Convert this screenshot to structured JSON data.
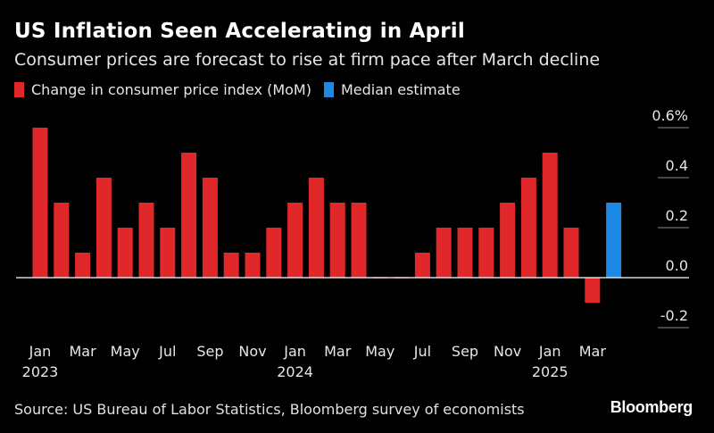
{
  "title": "US Inflation Seen Accelerating in April",
  "subtitle": "Consumer prices are forecast to rise at firm pace after March decline",
  "legend": [
    {
      "label": "Change in consumer price index (MoM)",
      "color": "#e0282b"
    },
    {
      "label": "Median estimate",
      "color": "#1e88e5"
    }
  ],
  "source": "Source: US Bureau of Labor Statistics, Bloomberg survey of economists",
  "brand": "Bloomberg",
  "chart_data": {
    "type": "bar",
    "categories": [
      "Jan 2023",
      "Feb 2023",
      "Mar 2023",
      "Apr 2023",
      "May 2023",
      "Jun 2023",
      "Jul 2023",
      "Aug 2023",
      "Sep 2023",
      "Oct 2023",
      "Nov 2023",
      "Dec 2023",
      "Jan 2024",
      "Feb 2024",
      "Mar 2024",
      "Apr 2024",
      "May 2024",
      "Jun 2024",
      "Jul 2024",
      "Aug 2024",
      "Sep 2024",
      "Oct 2024",
      "Nov 2024",
      "Dec 2024",
      "Jan 2025",
      "Feb 2025",
      "Mar 2025",
      "Apr 2025"
    ],
    "series": [
      {
        "name": "Change in consumer price index (MoM)",
        "color": "#e0282b",
        "values": [
          0.6,
          0.3,
          0.1,
          0.4,
          0.2,
          0.3,
          0.2,
          0.5,
          0.4,
          0.1,
          0.1,
          0.2,
          0.3,
          0.4,
          0.3,
          0.3,
          0.0,
          0.0,
          0.1,
          0.2,
          0.2,
          0.2,
          0.3,
          0.4,
          0.5,
          0.2,
          -0.1,
          null
        ]
      },
      {
        "name": "Median estimate",
        "color": "#1e88e5",
        "values": [
          null,
          null,
          null,
          null,
          null,
          null,
          null,
          null,
          null,
          null,
          null,
          null,
          null,
          null,
          null,
          null,
          null,
          null,
          null,
          null,
          null,
          null,
          null,
          null,
          null,
          null,
          null,
          0.3
        ]
      }
    ],
    "y_ticks": [
      "0.6%",
      "0.4",
      "0.2",
      "0.0",
      "-0.2"
    ],
    "y_tick_values": [
      0.6,
      0.4,
      0.2,
      0.0,
      -0.2
    ],
    "ylim": [
      -0.2,
      0.6
    ],
    "x_tick_labels": [
      {
        "index": 0,
        "month": "Jan",
        "year": "2023"
      },
      {
        "index": 2,
        "month": "Mar",
        "year": ""
      },
      {
        "index": 4,
        "month": "May",
        "year": ""
      },
      {
        "index": 6,
        "month": "Jul",
        "year": ""
      },
      {
        "index": 8,
        "month": "Sep",
        "year": ""
      },
      {
        "index": 10,
        "month": "Nov",
        "year": ""
      },
      {
        "index": 12,
        "month": "Jan",
        "year": "2024"
      },
      {
        "index": 14,
        "month": "Mar",
        "year": ""
      },
      {
        "index": 16,
        "month": "May",
        "year": ""
      },
      {
        "index": 18,
        "month": "Jul",
        "year": ""
      },
      {
        "index": 20,
        "month": "Sep",
        "year": ""
      },
      {
        "index": 22,
        "month": "Nov",
        "year": ""
      },
      {
        "index": 24,
        "month": "Jan",
        "year": "2025"
      },
      {
        "index": 26,
        "month": "Mar",
        "year": ""
      }
    ],
    "grid": true,
    "legend_position": "top-left",
    "axis_side": "right"
  }
}
